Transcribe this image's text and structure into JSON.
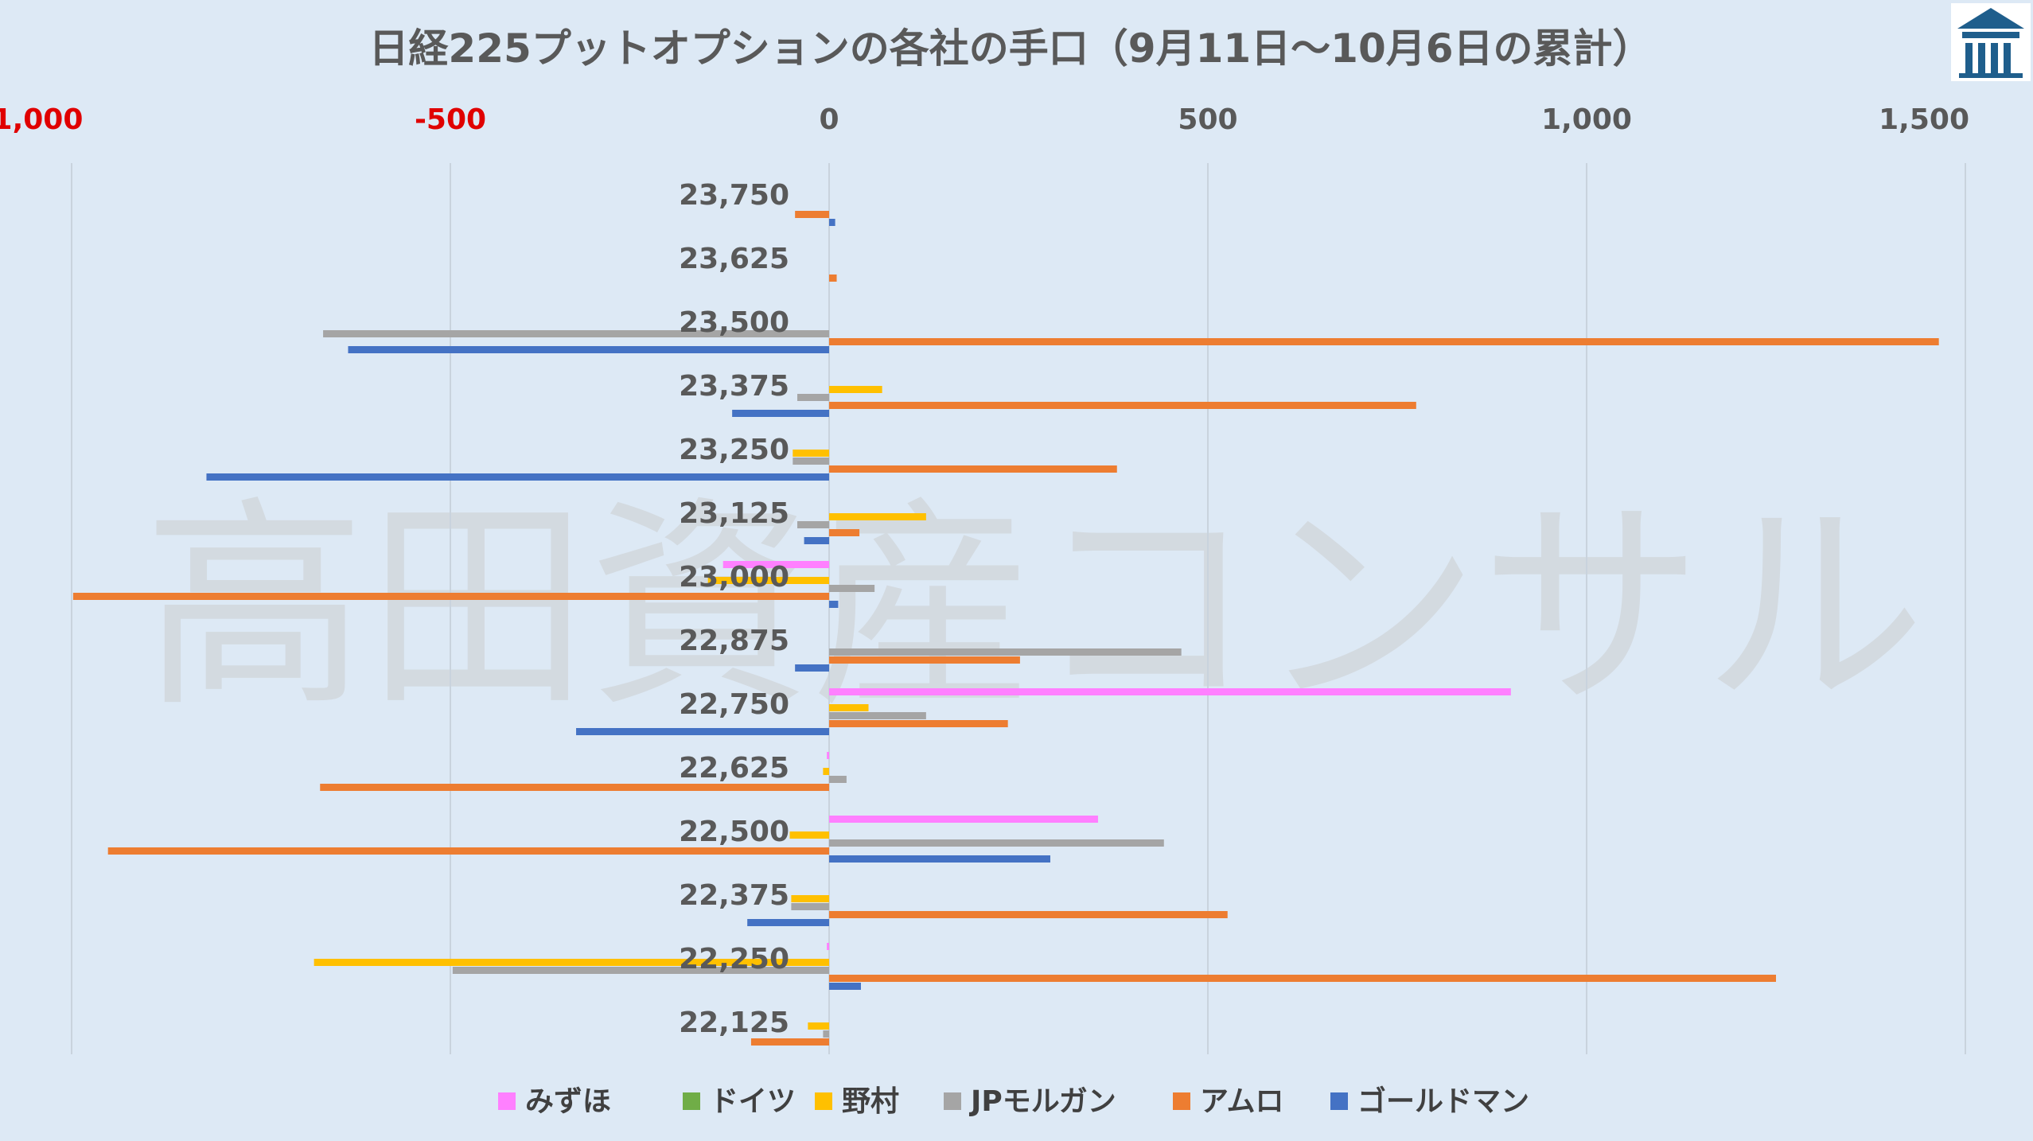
{
  "chart_data": {
    "type": "bar",
    "orientation": "horizontal",
    "title": "日経225プットオプションの各社の手口（9月11日～10月6日の累計）",
    "watermark": "高田資産コンサル",
    "xlim": [
      -1000,
      1500
    ],
    "x_ticks": [
      {
        "value": -1000,
        "label": "-1,000",
        "color": "#e00000"
      },
      {
        "value": -500,
        "label": "-500",
        "color": "#e00000"
      },
      {
        "value": 0,
        "label": "0",
        "color": "#595959"
      },
      {
        "value": 500,
        "label": "500",
        "color": "#595959"
      },
      {
        "value": 1000,
        "label": "1,000",
        "color": "#595959"
      },
      {
        "value": 1500,
        "label": "1,500",
        "color": "#595959"
      }
    ],
    "grid": true,
    "legend_position": "bottom",
    "categories": [
      "23,750",
      "23,625",
      "23,500",
      "23,375",
      "23,250",
      "23,125",
      "23,000",
      "22,875",
      "22,750",
      "22,625",
      "22,500",
      "22,375",
      "22,250",
      "22,125"
    ],
    "series": [
      {
        "name": "みずほ",
        "color": "#ff80ff",
        "values": [
          0,
          0,
          0,
          0,
          0,
          0,
          -140,
          0,
          900,
          -3,
          355,
          0,
          -3,
          0
        ]
      },
      {
        "name": "ドイツ",
        "color": "#70ad47",
        "values": [
          0,
          0,
          0,
          0,
          0,
          0,
          0,
          0,
          0,
          0,
          0,
          0,
          0,
          0
        ]
      },
      {
        "name": "野村",
        "color": "#ffc000",
        "values": [
          0,
          0,
          0,
          70,
          -48,
          128,
          -160,
          0,
          52,
          -8,
          -52,
          -50,
          -680,
          -28
        ]
      },
      {
        "name": "JPモルガン",
        "color": "#a5a5a5",
        "values": [
          0,
          0,
          -668,
          -42,
          -48,
          -42,
          60,
          465,
          128,
          23,
          442,
          -50,
          -497,
          -8
        ]
      },
      {
        "name": "アムロ",
        "color": "#ed7d31",
        "values": [
          -45,
          10,
          1465,
          775,
          380,
          40,
          -998,
          252,
          236,
          -672,
          -952,
          526,
          1250,
          -103
        ]
      },
      {
        "name": "ゴールドマン",
        "color": "#4472c4",
        "values": [
          8,
          0,
          -635,
          -128,
          -822,
          -33,
          12,
          -45,
          -334,
          0,
          292,
          -108,
          42,
          0
        ]
      }
    ]
  }
}
